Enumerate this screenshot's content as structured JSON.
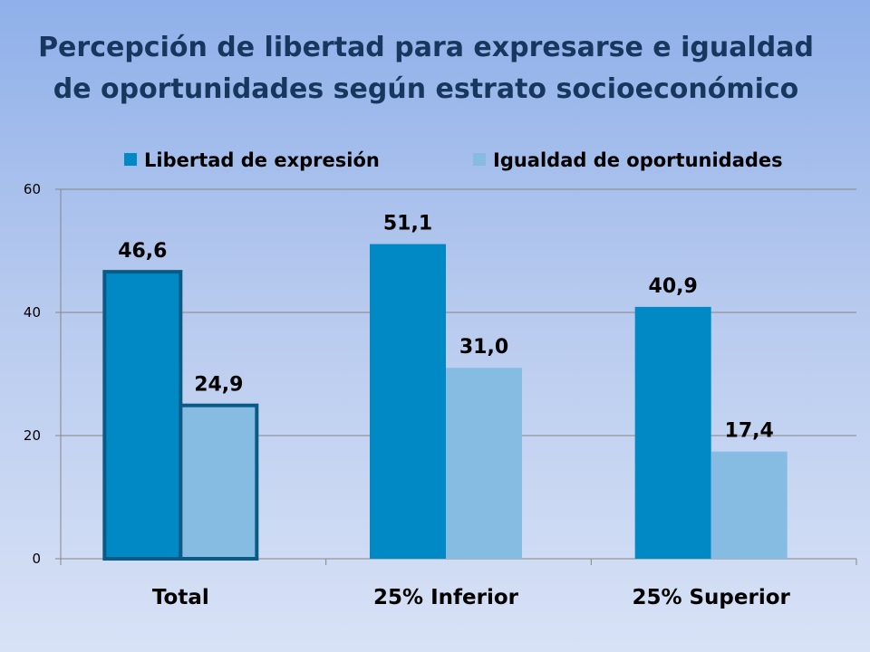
{
  "chart_data": {
    "type": "bar",
    "title_lines": [
      "Percepción de libertad para expresarse e igualdad",
      "de oportunidades según estrato socioeconómico"
    ],
    "categories": [
      "Total",
      "25% Inferior",
      "25% Superior"
    ],
    "series": [
      {
        "name": "Libertad de expresión",
        "values": [
          46.6,
          51.1,
          40.9
        ],
        "labels": [
          "46,6",
          "51,1",
          "40,9"
        ],
        "color": "#0089c4"
      },
      {
        "name": "Igualdad de oportunidades",
        "values": [
          24.9,
          31.0,
          17.4
        ],
        "labels": [
          "24,9",
          "31,0",
          "17,4"
        ],
        "color": "#86bbe2"
      }
    ],
    "yticks": [
      "0",
      "20",
      "40",
      "60"
    ],
    "ylim": [
      0,
      60
    ],
    "grid": true,
    "legend_position": "top",
    "highlight_category": "Total",
    "highlight_color": "#0a5a86"
  }
}
